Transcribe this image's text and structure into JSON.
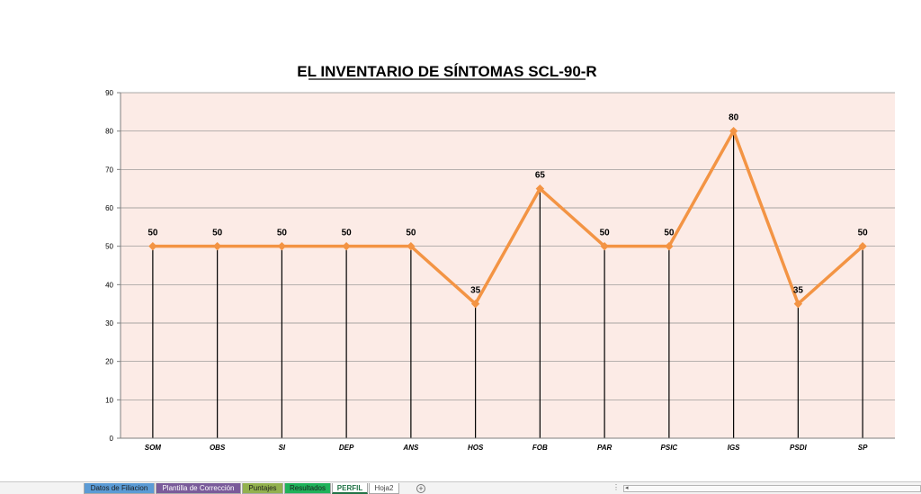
{
  "chart_data": {
    "type": "line",
    "title": "EL INVENTARIO DE SÍNTOMAS SCL-90-R",
    "categories": [
      "SOM",
      "OBS",
      "SI",
      "DEP",
      "ANS",
      "HOS",
      "FOB",
      "PAR",
      "PSIC",
      "IGS",
      "PSDI",
      "SP"
    ],
    "values": [
      50,
      50,
      50,
      50,
      50,
      35,
      65,
      50,
      50,
      80,
      35,
      50
    ],
    "ylim": [
      0,
      90
    ],
    "yticks": [
      0,
      10,
      20,
      30,
      40,
      50,
      60,
      70,
      80,
      90
    ],
    "grid": true,
    "drop_lines": true,
    "data_labels": true,
    "xlabel": "",
    "ylabel": "",
    "colors": {
      "line": "#f39444",
      "plot_background": "#fcebe6",
      "gridline": "#8c8c8c",
      "drop_line": "#000000"
    }
  },
  "sheet_tabs": [
    {
      "label": "Datos de Filiacion",
      "color": "#5b9bd5"
    },
    {
      "label": "Plantilla de Corrección",
      "color": "#7a5b9a"
    },
    {
      "label": "Puntajes",
      "color": "#92b14e"
    },
    {
      "label": "Resultados",
      "color": "#1fb25a"
    },
    {
      "label": "PERFIL",
      "color": "#c9e7f3",
      "active": true
    },
    {
      "label": "Hoja2",
      "color": "#ffffff"
    }
  ],
  "add_sheet_icon": "plus-circle-icon",
  "scroll_left_icon": "caret-left-icon"
}
